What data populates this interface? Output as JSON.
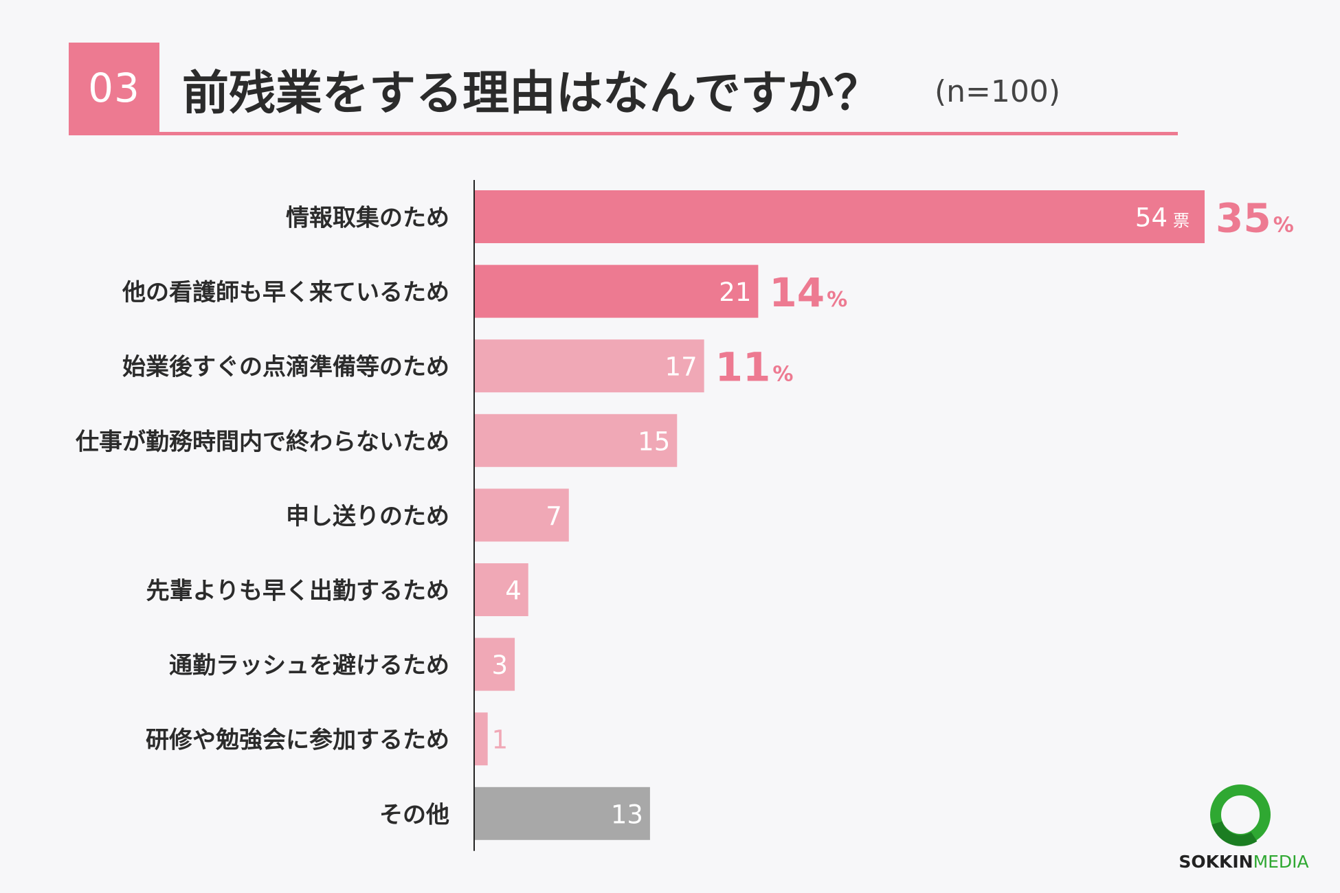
{
  "header": {
    "number": "03",
    "title": "前残業をする理由はなんですか？",
    "sample": "(n=100)"
  },
  "chart_data": {
    "type": "bar",
    "orientation": "horizontal",
    "title": "前残業をする理由はなんですか？",
    "categories": [
      "情報取集のため",
      "他の看護師も早く来ているため",
      "始業後すぐの点滴準備等のため",
      "仕事が勤務時間内で終わらないため",
      "申し送りのため",
      "先輩よりも早く出勤するため",
      "通勤ラッシュを避けるため",
      "研修や勉強会に参加するため",
      "その他"
    ],
    "values": [
      54,
      21,
      17,
      15,
      7,
      4,
      3,
      1,
      13
    ],
    "percent_labels": [
      "35",
      "14",
      "11",
      null,
      null,
      null,
      null,
      null,
      null
    ],
    "vote_unit": "票",
    "percent_unit": "%",
    "xlim": [
      0,
      54
    ],
    "colors": [
      "#ed7a91",
      "#ed7a91",
      "#f0a8b6",
      "#f0a8b6",
      "#f0a8b6",
      "#f0a8b6",
      "#f0a8b6",
      "#f0a8b6",
      "#a8a8a8"
    ],
    "label_colors": [
      "#ffffff",
      "#ffffff",
      "#ffffff",
      "#ffffff",
      "#ffffff",
      "#ffffff",
      "#ffffff",
      "#f0a8b6",
      "#ffffff"
    ],
    "percent_color": "#ed7a91"
  },
  "logo": {
    "text_a": "SOKKIN",
    "text_b": "MEDIA",
    "ring_color": "#2fa832"
  }
}
